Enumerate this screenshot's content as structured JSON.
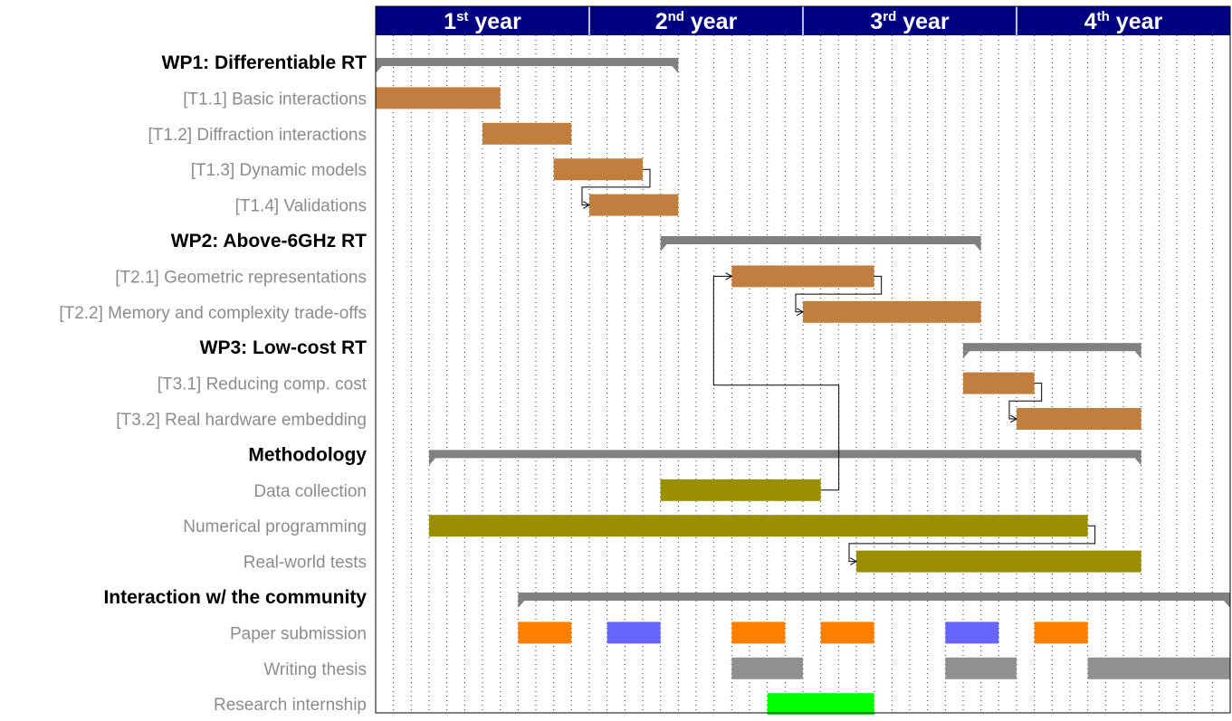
{
  "chart_data": {
    "type": "gantt",
    "time_unit": "month",
    "total_months": 48,
    "header": {
      "years": [
        {
          "number": "1",
          "suffix": "st",
          "word": "year"
        },
        {
          "number": "2",
          "suffix": "nd",
          "word": "year"
        },
        {
          "number": "3",
          "suffix": "rd",
          "word": "year"
        },
        {
          "number": "4",
          "suffix": "th",
          "word": "year"
        }
      ]
    },
    "colors": {
      "header_bg": "#000080",
      "group_bar": "#808080",
      "task_bar": "#c07f3f",
      "method_bar": "#9a8f00",
      "paper_orange": "#ff8000",
      "paper_blue": "#6666ff",
      "thesis_gray": "#909090",
      "internship_green": "#00ff00"
    },
    "rows": [
      {
        "label": "WP1: Differentiable RT",
        "kind": "group",
        "segments": [
          {
            "start": 0,
            "end": 17
          }
        ]
      },
      {
        "label": "[T1.1] Basic interactions",
        "kind": "task",
        "segments": [
          {
            "start": 0,
            "end": 7,
            "color": "task_bar"
          }
        ]
      },
      {
        "label": "[T1.2] Diffraction interactions",
        "kind": "task",
        "segments": [
          {
            "start": 6,
            "end": 11,
            "color": "task_bar"
          }
        ]
      },
      {
        "label": "[T1.3] Dynamic models",
        "kind": "task",
        "segments": [
          {
            "start": 10,
            "end": 15,
            "color": "task_bar"
          }
        ]
      },
      {
        "label": "[T1.4] Validations",
        "kind": "task",
        "segments": [
          {
            "start": 12,
            "end": 17,
            "color": "task_bar"
          }
        ]
      },
      {
        "label": "WP2: Above-6GHz RT",
        "kind": "group",
        "segments": [
          {
            "start": 16,
            "end": 34
          }
        ]
      },
      {
        "label": "[T2.1] Geometric representations",
        "kind": "task",
        "segments": [
          {
            "start": 20,
            "end": 28,
            "color": "task_bar"
          }
        ]
      },
      {
        "label": "[T2.2] Memory and complexity trade-offs",
        "kind": "task",
        "segments": [
          {
            "start": 24,
            "end": 34,
            "color": "task_bar"
          }
        ]
      },
      {
        "label": "WP3: Low-cost RT",
        "kind": "group",
        "segments": [
          {
            "start": 33,
            "end": 43
          }
        ]
      },
      {
        "label": "[T3.1] Reducing comp. cost",
        "kind": "task",
        "segments": [
          {
            "start": 33,
            "end": 37,
            "color": "task_bar"
          }
        ]
      },
      {
        "label": "[T3.2] Real hardware embedding",
        "kind": "task",
        "segments": [
          {
            "start": 36,
            "end": 43,
            "color": "task_bar"
          }
        ]
      },
      {
        "label": "Methodology",
        "kind": "group",
        "segments": [
          {
            "start": 3,
            "end": 43
          }
        ]
      },
      {
        "label": "Data collection",
        "kind": "task",
        "segments": [
          {
            "start": 16,
            "end": 25,
            "color": "method_bar"
          }
        ]
      },
      {
        "label": "Numerical programming",
        "kind": "task",
        "segments": [
          {
            "start": 3,
            "end": 40,
            "color": "method_bar"
          }
        ]
      },
      {
        "label": "Real-world tests",
        "kind": "task",
        "segments": [
          {
            "start": 27,
            "end": 43,
            "color": "method_bar"
          }
        ]
      },
      {
        "label": "Interaction w/ the community",
        "kind": "group",
        "segments": [
          {
            "start": 8,
            "end": 48
          }
        ]
      },
      {
        "label": "Paper submission",
        "kind": "task",
        "segments": [
          {
            "start": 8,
            "end": 11,
            "color": "paper_orange"
          },
          {
            "start": 13,
            "end": 16,
            "color": "paper_blue"
          },
          {
            "start": 20,
            "end": 23,
            "color": "paper_orange"
          },
          {
            "start": 25,
            "end": 28,
            "color": "paper_orange"
          },
          {
            "start": 32,
            "end": 35,
            "color": "paper_blue"
          },
          {
            "start": 37,
            "end": 40,
            "color": "paper_orange"
          }
        ]
      },
      {
        "label": "Writing thesis",
        "kind": "task",
        "segments": [
          {
            "start": 20,
            "end": 24,
            "color": "thesis_gray"
          },
          {
            "start": 32,
            "end": 36,
            "color": "thesis_gray"
          },
          {
            "start": 40,
            "end": 48,
            "color": "thesis_gray"
          }
        ]
      },
      {
        "label": "Research internship",
        "kind": "task",
        "segments": [
          {
            "start": 22,
            "end": 28,
            "color": "internship_green"
          }
        ]
      }
    ],
    "dependencies": [
      {
        "from": "[T1.3] Dynamic models",
        "to": "[T1.4] Validations"
      },
      {
        "from": "[T2.1] Geometric representations",
        "to": "[T2.2] Memory and complexity trade-offs"
      },
      {
        "from": "[T3.1] Reducing comp. cost",
        "to": "[T3.2] Real hardware embedding"
      },
      {
        "from": "Data collection",
        "to": "[T2.1] Geometric representations"
      },
      {
        "from": "Numerical programming",
        "to": "Real-world tests"
      }
    ]
  }
}
